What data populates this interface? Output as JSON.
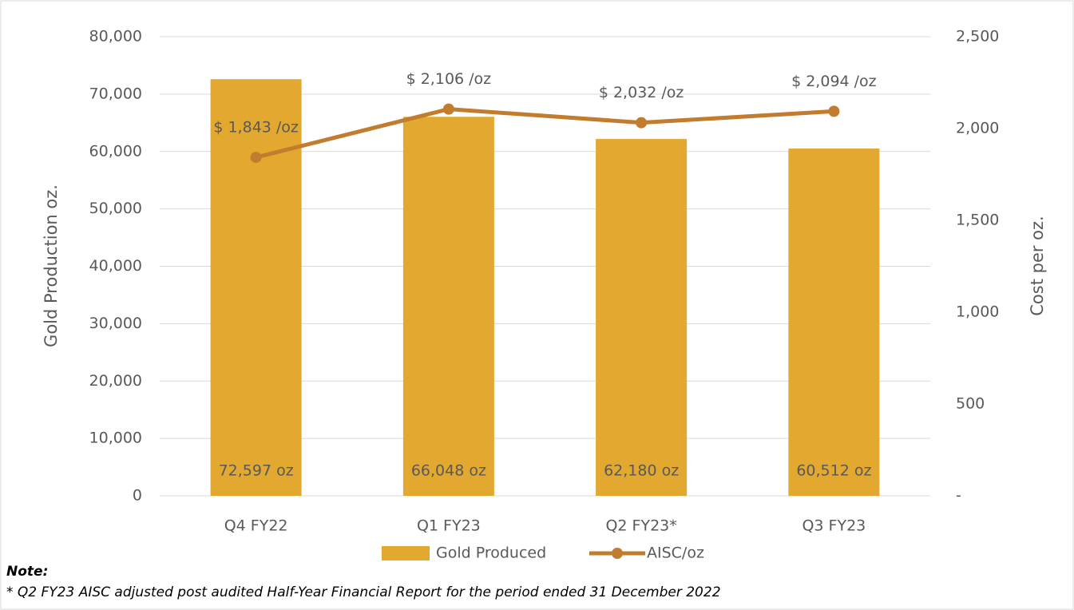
{
  "chart_data": {
    "type": "bar_line",
    "categories": [
      "Q4 FY22",
      "Q1 FY23",
      "Q2 FY23*",
      "Q3 FY23"
    ],
    "series": [
      {
        "name": "Gold Produced",
        "color": "#e2a82f",
        "values": [
          72597,
          66048,
          62180,
          60512
        ],
        "value_labels": [
          "72,597 oz",
          "66,048 oz",
          "62,180 oz",
          "60,512 oz"
        ]
      },
      {
        "name": "AISC/oz",
        "color": "#c27c2e",
        "axis": "y2",
        "values": [
          1843,
          2106,
          2032,
          2094
        ],
        "value_labels": [
          "$ 1,843 /oz",
          "$ 2,106 /oz",
          "$ 2,032 /oz",
          "$ 2,094 /oz"
        ]
      }
    ],
    "ylabel": "Gold Production oz.",
    "y2label": "Cost per oz.",
    "ylim": [
      0,
      80000
    ],
    "yticks": [
      0,
      {
        "value": 10000,
        "label": "10,000"
      },
      {
        "value": 20000,
        "label": "20,000"
      },
      {
        "value": 30000,
        "label": "30,000"
      },
      {
        "value": 40000,
        "label": "40,000"
      },
      {
        "value": 50000,
        "label": "50,000"
      },
      {
        "value": 60000,
        "label": "60,000"
      },
      {
        "value": 70000,
        "label": "70,000"
      },
      {
        "value": 80000,
        "label": "80,000"
      }
    ],
    "y2lim": [
      0,
      2500
    ],
    "y2ticks": [
      {
        "value": 0,
        "label": "-"
      },
      500,
      {
        "value": 1000,
        "label": "1,000"
      },
      {
        "value": 1500,
        "label": "1,500"
      },
      {
        "value": 2000,
        "label": "2,000"
      },
      {
        "value": 2500,
        "label": "2,500"
      }
    ],
    "grid": true,
    "legend": "bottom",
    "note_title": "Note:",
    "note": "* Q2 FY23 AISC adjusted post audited Half-Year Financial Report for the period ended 31 December 2022"
  }
}
